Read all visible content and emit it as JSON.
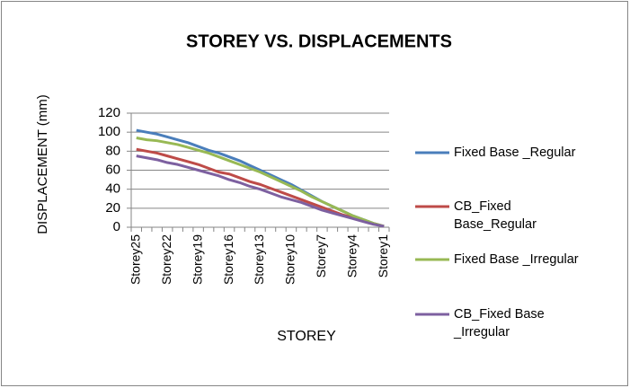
{
  "chart_data": {
    "type": "line",
    "title": "STOREY VS. DISPLACEMENTS",
    "x_label": "STOREY",
    "y_label": "DISPLACEMENT (mm)",
    "categories": [
      "Storey25",
      null,
      null,
      "Storey22",
      null,
      null,
      "Storey19",
      null,
      null,
      "Storey16",
      null,
      null,
      "Storey13",
      null,
      null,
      "Storey10",
      null,
      null,
      "Storey7",
      null,
      null,
      "Storey4",
      null,
      null,
      "Storey1"
    ],
    "series": [
      {
        "name": "Fixed Base _Regular",
        "color": "#4a7ebb",
        "values": [
          102,
          100,
          98,
          95,
          92,
          89,
          85,
          81,
          78,
          74,
          70,
          65,
          60,
          55,
          50,
          45,
          39,
          33,
          27,
          22,
          17,
          12,
          8,
          4,
          1
        ]
      },
      {
        "name": "CB_Fixed Base_Regular",
        "color": "#be4b48",
        "values": [
          82,
          80,
          78,
          75,
          72,
          69,
          66,
          62,
          58,
          56,
          52,
          48,
          45,
          41,
          37,
          33,
          29,
          25,
          21,
          17,
          13,
          10,
          7,
          4,
          1
        ]
      },
      {
        "name": "Fixed Base _Irregular",
        "color": "#98b954",
        "values": [
          94,
          92,
          91,
          89,
          87,
          84,
          81,
          78,
          74,
          70,
          66,
          62,
          58,
          53,
          48,
          43,
          38,
          32,
          27,
          22,
          17,
          12,
          8,
          4,
          1
        ]
      },
      {
        "name": "CB_Fixed Base _Irregular",
        "color": "#7d60a0",
        "values": [
          75,
          73,
          71,
          68,
          66,
          63,
          60,
          57,
          54,
          50,
          47,
          43,
          40,
          36,
          32,
          29,
          26,
          22,
          18,
          15,
          12,
          9,
          6,
          3,
          1
        ]
      }
    ],
    "ylim": [
      0,
      120
    ],
    "yticks": [
      0,
      20,
      40,
      60,
      80,
      100,
      120
    ],
    "grid": true,
    "legend": "right"
  }
}
